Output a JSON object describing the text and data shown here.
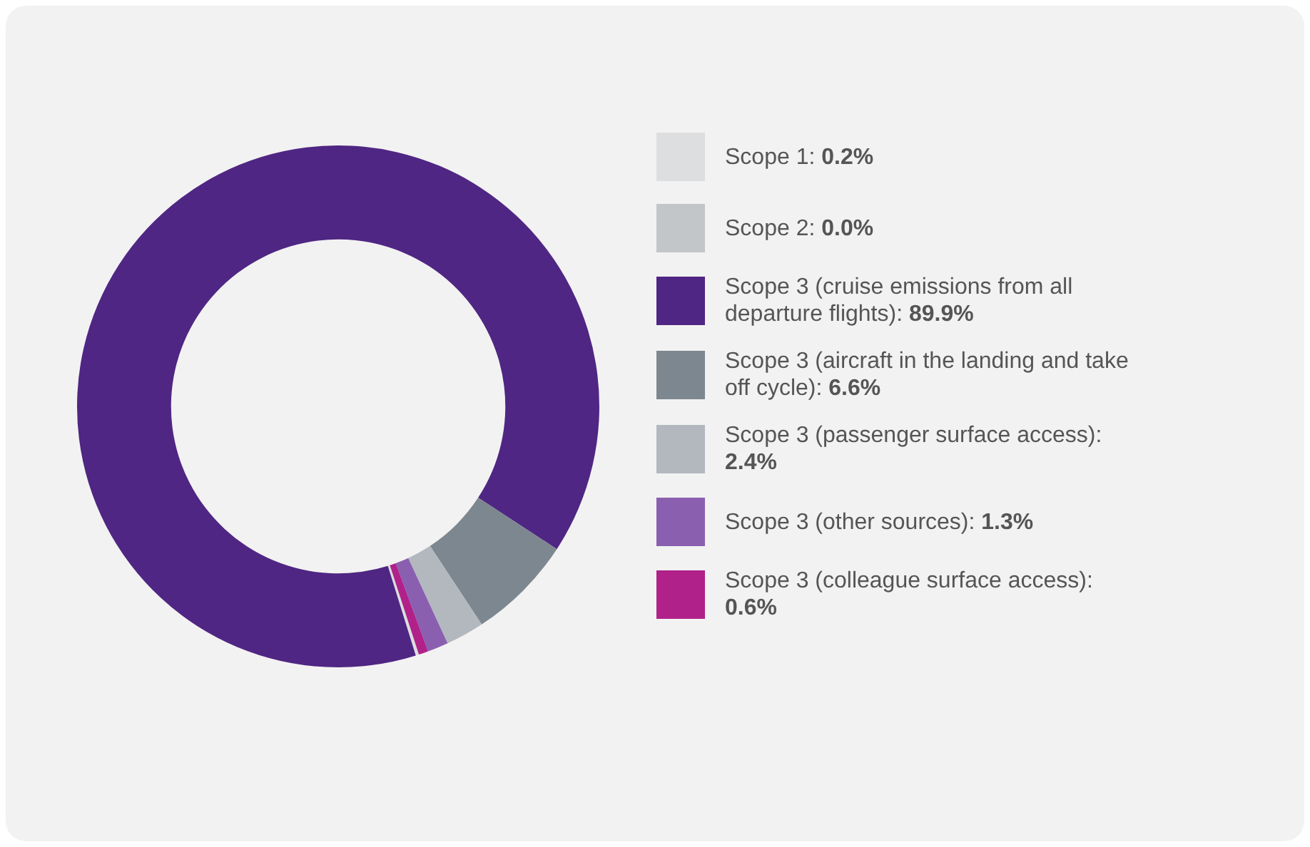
{
  "chart_data": {
    "type": "donut",
    "categories": [
      "Scope 1: 0.2%",
      "Scope 2: 0.0%",
      "Scope 3 (cruise emissions from all departure flights): 89.9%",
      "Scope 3 (aircraft in the landing and take off cycle): 6.6%",
      "Scope 3 (passenger surface access): 2.4%",
      "Scope 3 (other sources): 1.3%",
      "Scope 3 (colleague surface access): 0.6%"
    ],
    "values": [
      0.2,
      0.0,
      89.9,
      6.6,
      2.4,
      1.3,
      0.6
    ],
    "colors": [
      "#dcdedf",
      "#c2c6c9",
      "#4f2683",
      "#7d878f",
      "#b3b8bf",
      "#8a5fb0",
      "#b0218a"
    ],
    "legend": "right"
  }
}
